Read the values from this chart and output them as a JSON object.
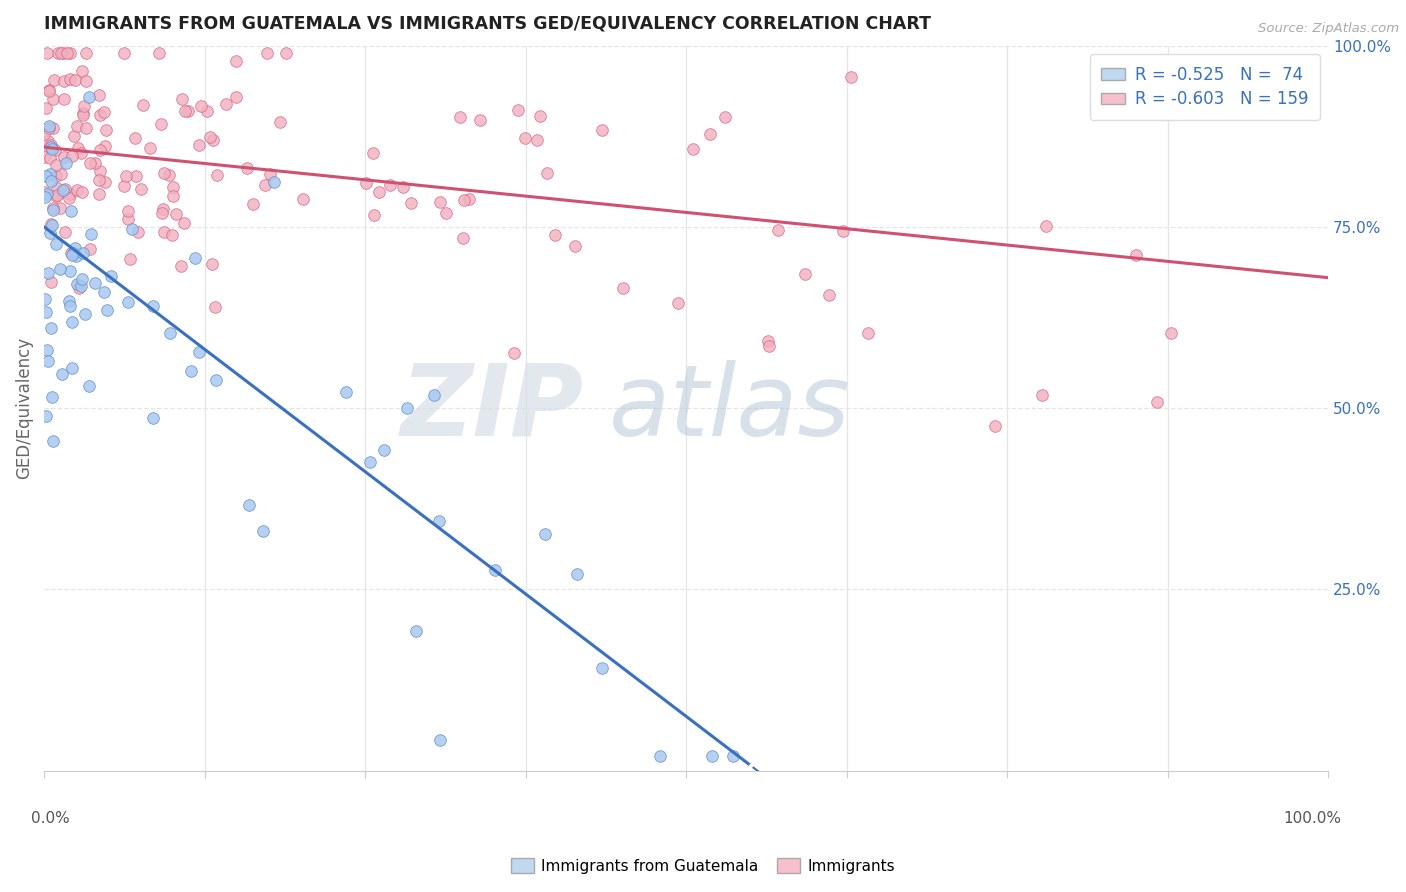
{
  "title": "IMMIGRANTS FROM GUATEMALA VS IMMIGRANTS GED/EQUIVALENCY CORRELATION CHART",
  "source": "Source: ZipAtlas.com",
  "ylabel": "GED/Equivalency",
  "right_yticks": [
    0.25,
    0.5,
    0.75,
    1.0
  ],
  "right_yticklabels": [
    "25.0%",
    "50.0%",
    "75.0%",
    "100.0%"
  ],
  "series1": {
    "name": "Immigrants from Guatemala",
    "color": "#a8c8f0",
    "edge_color": "#6090c8",
    "R": -0.525,
    "N": 74,
    "line_color": "#3a70c0",
    "intercept": 0.75,
    "slope": -1.35
  },
  "series2": {
    "name": "Immigrants",
    "color": "#f0b0c0",
    "edge_color": "#d86080",
    "R": -0.603,
    "N": 159,
    "line_color": "#d05070",
    "intercept": 0.86,
    "slope": -0.18
  },
  "xlim": [
    0,
    1.0
  ],
  "ylim": [
    0,
    1.0
  ],
  "background_color": "#ffffff",
  "grid_color": "#e5e5e5",
  "watermark_zip": "ZIP",
  "watermark_atlas": "atlas",
  "title_color": "#222222",
  "axis_label_color": "#666666",
  "legend_text_color": "#3a70c0",
  "right_ytick_color": "#3a70c0",
  "xtick_labels_color": "#555555",
  "legend_R1": "R = -0.525",
  "legend_N1": "N =  74",
  "legend_R2": "R = -0.603",
  "legend_N2": "N = 159"
}
